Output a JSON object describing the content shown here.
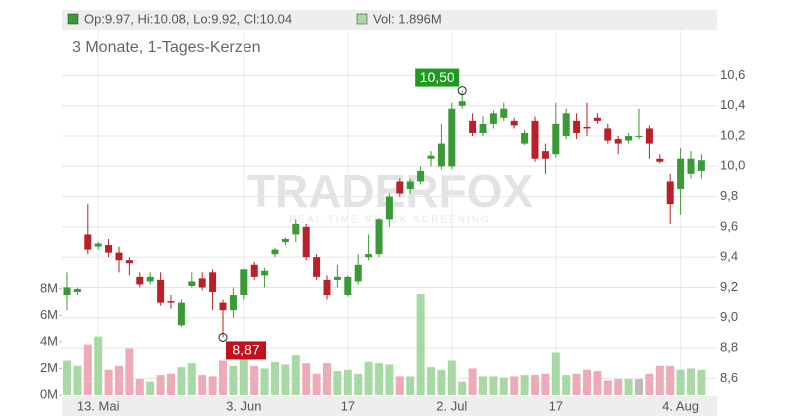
{
  "chart_data": {
    "type": "candlestick",
    "legend_ohlc": "Op:9.97, Hi:10.08, Lo:9.92, Cl:10.04",
    "legend_volume": "Vol: 1.896M",
    "subtitle": "3 Monate, 1-Tages-Kerzen",
    "watermark": "TRADERFOX",
    "watermark_sub": "REAL TIME STOCK SCREENING",
    "high_label": "10,50",
    "low_label": "8,87",
    "up_color": "#3a9a35",
    "down_color": "#b8202a",
    "volume_up_color": "#a8d9a4",
    "volume_down_color": "#eeaab6",
    "volume_flat_color": "#bbbbbb",
    "categories": [
      null,
      null,
      null,
      "13. Mai",
      null,
      null,
      null,
      null,
      null,
      null,
      null,
      null,
      null,
      null,
      null,
      null,
      null,
      "3. Jun",
      null,
      null,
      null,
      null,
      null,
      null,
      null,
      null,
      null,
      "17",
      null,
      null,
      null,
      null,
      null,
      null,
      null,
      null,
      null,
      "2. Jul",
      null,
      null,
      null,
      null,
      null,
      null,
      null,
      null,
      null,
      "17",
      null,
      null,
      null,
      null,
      null,
      null,
      null,
      null,
      null,
      null,
      null,
      "4. Aug",
      null,
      null
    ],
    "open": [
      9.15,
      9.17,
      9.55,
      9.47,
      9.48,
      9.43,
      9.38,
      9.27,
      9.24,
      9.25,
      9.11,
      8.95,
      9.21,
      9.26,
      9.3,
      9.1,
      9.05,
      9.15,
      9.35,
      9.28,
      9.42,
      9.5,
      9.55,
      9.6,
      9.4,
      9.25,
      9.25,
      9.15,
      9.24,
      9.4,
      9.42,
      9.65,
      9.9,
      9.85,
      9.9,
      10.05,
      10.0,
      10.0,
      10.4,
      10.3,
      10.22,
      10.28,
      10.32,
      10.3,
      10.15,
      10.3,
      10.1,
      10.08,
      10.2,
      10.3,
      10.26,
      10.32,
      10.25,
      10.18,
      10.17,
      10.2,
      10.25,
      10.05,
      9.9,
      9.85,
      9.95,
      9.97
    ],
    "high": [
      9.3,
      9.2,
      9.75,
      9.5,
      9.52,
      9.47,
      9.4,
      9.3,
      9.3,
      9.3,
      9.15,
      9.12,
      9.3,
      9.3,
      9.32,
      9.12,
      9.2,
      9.32,
      9.37,
      9.33,
      9.46,
      9.53,
      9.65,
      9.62,
      9.42,
      9.28,
      9.35,
      9.28,
      9.42,
      9.55,
      9.66,
      9.82,
      9.92,
      9.92,
      10.0,
      10.1,
      10.28,
      10.42,
      10.5,
      10.35,
      10.33,
      10.37,
      10.42,
      10.32,
      10.24,
      10.33,
      10.15,
      10.42,
      10.38,
      10.35,
      10.42,
      10.35,
      10.28,
      10.2,
      10.22,
      10.38,
      10.27,
      10.08,
      9.95,
      10.12,
      10.1,
      10.08
    ],
    "low": [
      9.05,
      9.15,
      9.42,
      9.45,
      9.4,
      9.3,
      9.28,
      9.2,
      9.22,
      9.08,
      9.06,
      8.94,
      9.2,
      9.18,
      9.05,
      8.87,
      9.0,
      9.12,
      9.25,
      9.2,
      9.4,
      9.48,
      9.5,
      9.38,
      9.25,
      9.12,
      9.2,
      9.14,
      9.22,
      9.38,
      9.4,
      9.6,
      9.8,
      9.82,
      9.88,
      10.0,
      9.98,
      9.98,
      10.38,
      10.2,
      10.2,
      10.25,
      10.3,
      10.25,
      10.14,
      10.03,
      9.95,
      10.06,
      10.18,
      10.18,
      10.2,
      10.28,
      10.15,
      10.08,
      10.15,
      10.18,
      10.05,
      10.02,
      9.62,
      9.68,
      9.92,
      9.92
    ],
    "close": [
      9.2,
      9.19,
      9.45,
      9.49,
      9.43,
      9.38,
      9.36,
      9.22,
      9.27,
      9.1,
      9.1,
      9.1,
      9.24,
      9.2,
      9.17,
      9.05,
      9.15,
      9.32,
      9.27,
      9.31,
      9.45,
      9.52,
      9.62,
      9.4,
      9.27,
      9.15,
      9.27,
      9.27,
      9.35,
      9.42,
      9.65,
      9.8,
      9.82,
      9.9,
      9.97,
      10.07,
      10.15,
      10.38,
      10.43,
      10.22,
      10.28,
      10.35,
      10.38,
      10.27,
      10.22,
      10.05,
      10.05,
      10.28,
      10.35,
      10.22,
      10.25,
      10.3,
      10.17,
      10.15,
      10.2,
      10.2,
      10.15,
      10.03,
      9.75,
      10.05,
      10.05,
      10.04
    ],
    "volume": [
      2.6,
      2.2,
      3.8,
      4.4,
      1.9,
      2.2,
      3.5,
      1.2,
      1.0,
      1.5,
      1.6,
      2.1,
      2.4,
      1.5,
      1.4,
      2.6,
      2.2,
      2.8,
      2.2,
      2.0,
      2.5,
      2.3,
      3.0,
      2.4,
      1.6,
      2.4,
      1.8,
      1.9,
      1.6,
      2.5,
      2.4,
      2.3,
      1.4,
      1.4,
      7.6,
      2.1,
      1.9,
      2.6,
      1.0,
      2.0,
      1.4,
      1.4,
      1.3,
      1.4,
      1.5,
      1.5,
      1.6,
      3.2,
      1.5,
      1.6,
      1.9,
      1.8,
      1.1,
      1.2,
      1.2,
      1.2,
      1.6,
      2.2,
      2.2,
      1.9,
      2.0,
      1.896
    ],
    "ylim": [
      8.49,
      10.9
    ],
    "yticks": [
      {
        "value": 8.6,
        "label": "8,6"
      },
      {
        "value": 8.8,
        "label": "8,8"
      },
      {
        "value": 9.0,
        "label": "9,0"
      },
      {
        "value": 9.2,
        "label": "9,2"
      },
      {
        "value": 9.4,
        "label": "9,4"
      },
      {
        "value": 9.6,
        "label": "9,6"
      },
      {
        "value": 9.8,
        "label": "9,8"
      },
      {
        "value": 10.0,
        "label": "10,0"
      },
      {
        "value": 10.2,
        "label": "10,2"
      },
      {
        "value": 10.4,
        "label": "10,4"
      },
      {
        "value": 10.6,
        "label": "10,6"
      }
    ],
    "y2lim": [
      0,
      27.5
    ],
    "y2ticks": [
      {
        "value": 0,
        "label": "0M"
      },
      {
        "value": 2,
        "label": "2M"
      },
      {
        "value": 4,
        "label": "4M"
      },
      {
        "value": 6,
        "label": "6M"
      },
      {
        "value": 8,
        "label": "8M"
      }
    ],
    "grid": true
  }
}
